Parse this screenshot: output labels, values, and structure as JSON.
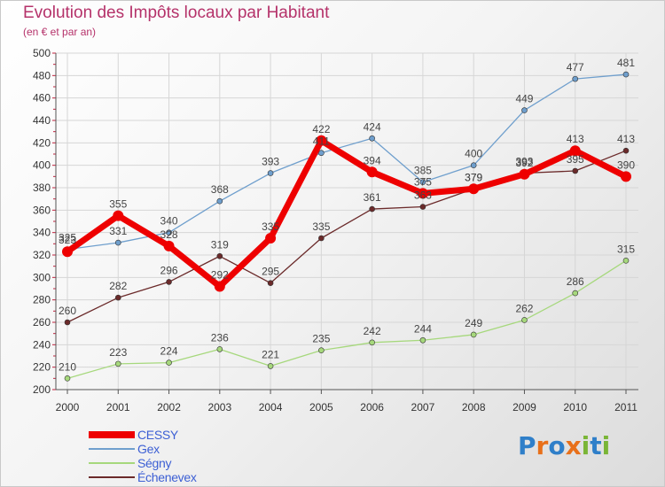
{
  "header": {
    "title": "Evolution des Impôts locaux par Habitant",
    "subtitle": "(en € et par an)"
  },
  "colors": {
    "title": "#b5326a",
    "legend_text": "#3c5fd4",
    "axis_text": "#333333",
    "cessy": "#ee0000",
    "gex": "#6f9fcd",
    "segny": "#a6d87c",
    "echenevex": "#6b2a2a"
  },
  "logo": {
    "text": "Proxiti",
    "letters": [
      "P",
      "r",
      "o",
      "x",
      "i",
      "t",
      "i"
    ],
    "colors": [
      "#2f7fc9",
      "#e8701a",
      "#2f7fc9",
      "#e8701a",
      "#7ab536",
      "#2f7fc9",
      "#7ab536"
    ]
  },
  "chart_data": {
    "type": "line",
    "title": "Evolution des Impôts locaux par Habitant",
    "subtitle": "(en € et par an)",
    "xlabel": "",
    "ylabel": "",
    "categories": [
      "2000",
      "2001",
      "2002",
      "2003",
      "2004",
      "2005",
      "2006",
      "2007",
      "2008",
      "2009",
      "2010",
      "2011"
    ],
    "ylim": [
      200,
      500
    ],
    "yticks": [
      200,
      220,
      240,
      260,
      280,
      300,
      320,
      340,
      360,
      380,
      400,
      420,
      440,
      460,
      480,
      500
    ],
    "grid": true,
    "legend_position": "bottom-left",
    "series": [
      {
        "name": "CESSY",
        "color": "#ee0000",
        "values": [
          323,
          355,
          328,
          292,
          335,
          422,
          394,
          375,
          379,
          392,
          413,
          390
        ]
      },
      {
        "name": "Gex",
        "color": "#6f9fcd",
        "values": [
          325,
          331,
          340,
          368,
          393,
          411,
          424,
          385,
          400,
          449,
          477,
          481
        ]
      },
      {
        "name": "Ségny",
        "color": "#a6d87c",
        "values": [
          210,
          223,
          224,
          236,
          221,
          235,
          242,
          244,
          249,
          262,
          286,
          315
        ]
      },
      {
        "name": "Échenevex",
        "color": "#6b2a2a",
        "values": [
          260,
          282,
          296,
          319,
          295,
          335,
          361,
          363,
          379,
          393,
          395,
          413
        ]
      }
    ]
  }
}
